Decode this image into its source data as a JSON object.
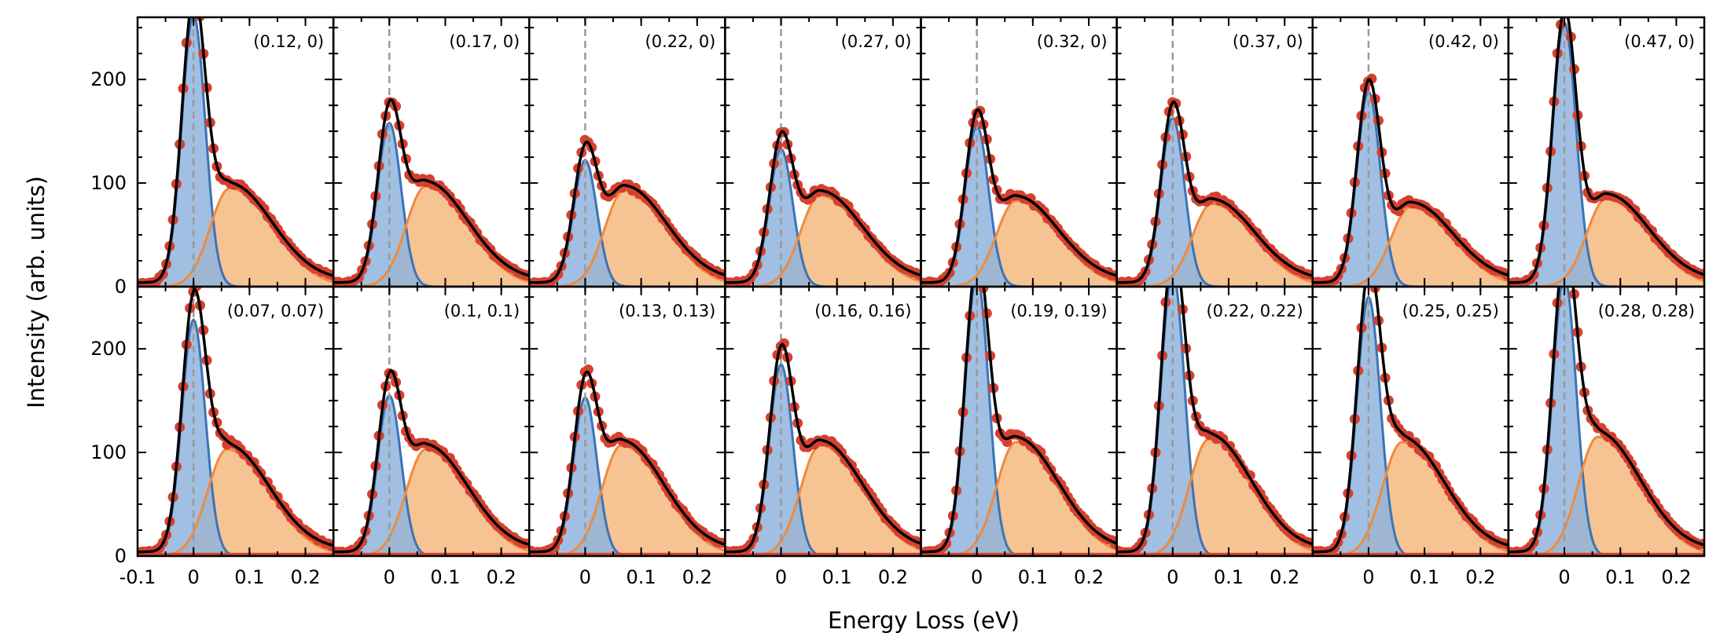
{
  "figure": {
    "ylabel": "Intensity (arb. units)",
    "xlabel": "Energy Loss (eV)"
  },
  "colors": {
    "data_points": "#d6402e",
    "elastic_fill": "#8fb4dd",
    "elastic_line": "#3b74b6",
    "inelastic_fill": "#f6c08c",
    "inelastic_line": "#f08a3c",
    "fit_line": "#000000",
    "reference_dash": "#9a9a9a"
  },
  "chart_data": {
    "type": "line",
    "layout": "grid 2x8, shared axes",
    "xlim": [
      -0.1,
      0.25
    ],
    "ylim": [
      0,
      260
    ],
    "xticks": [
      -0.1,
      0,
      0.1,
      0.2
    ],
    "xtick_labels": [
      "-0.1",
      "0",
      "0.1",
      "0.2"
    ],
    "yticks": [
      0,
      100,
      200
    ],
    "ytick_labels": [
      "0",
      "100",
      "200"
    ],
    "components": [
      "data",
      "elastic peak",
      "inelastic peak",
      "total fit"
    ],
    "panels": [
      {
        "label": "(0.12, 0)",
        "elastic_amp": 262,
        "elastic_center": 0.0,
        "inelastic_amp": 95,
        "inelastic_center": 0.065
      },
      {
        "label": "(0.17, 0)",
        "elastic_amp": 158,
        "elastic_center": 0.0,
        "inelastic_amp": 97,
        "inelastic_center": 0.065
      },
      {
        "label": "(0.22, 0)",
        "elastic_amp": 122,
        "elastic_center": 0.0,
        "inelastic_amp": 93,
        "inelastic_center": 0.07
      },
      {
        "label": "(0.27, 0)",
        "elastic_amp": 133,
        "elastic_center": 0.0,
        "inelastic_amp": 88,
        "inelastic_center": 0.07
      },
      {
        "label": "(0.32, 0)",
        "elastic_amp": 155,
        "elastic_center": 0.0,
        "inelastic_amp": 83,
        "inelastic_center": 0.07
      },
      {
        "label": "(0.37, 0)",
        "elastic_amp": 163,
        "elastic_center": 0.0,
        "inelastic_amp": 80,
        "inelastic_center": 0.07
      },
      {
        "label": "(0.42, 0)",
        "elastic_amp": 188,
        "elastic_center": 0.0,
        "inelastic_amp": 77,
        "inelastic_center": 0.075
      },
      {
        "label": "(0.47, 0)",
        "elastic_amp": 255,
        "elastic_center": 0.0,
        "inelastic_amp": 85,
        "inelastic_center": 0.075
      },
      {
        "label": "(0.07, 0.07)",
        "elastic_amp": 228,
        "elastic_center": 0.0,
        "inelastic_amp": 103,
        "inelastic_center": 0.06
      },
      {
        "label": "(0.1, 0.1)",
        "elastic_amp": 155,
        "elastic_center": 0.0,
        "inelastic_amp": 103,
        "inelastic_center": 0.065
      },
      {
        "label": "(0.13, 0.13)",
        "elastic_amp": 153,
        "elastic_center": 0.0,
        "inelastic_amp": 107,
        "inelastic_center": 0.065
      },
      {
        "label": "(0.16, 0.16)",
        "elastic_amp": 185,
        "elastic_center": 0.0,
        "inelastic_amp": 107,
        "inelastic_center": 0.07
      },
      {
        "label": "(0.19, 0.19)",
        "elastic_amp": 270,
        "elastic_center": 0.0,
        "inelastic_amp": 110,
        "inelastic_center": 0.07
      },
      {
        "label": "(0.22, 0.22)",
        "elastic_amp": 275,
        "elastic_center": 0.0,
        "inelastic_amp": 113,
        "inelastic_center": 0.065
      },
      {
        "label": "(0.25, 0.25)",
        "elastic_amp": 250,
        "elastic_center": 0.0,
        "inelastic_amp": 110,
        "inelastic_center": 0.06
      },
      {
        "label": "(0.28, 0.28)",
        "elastic_amp": 270,
        "elastic_center": 0.0,
        "inelastic_amp": 115,
        "inelastic_center": 0.06
      }
    ]
  }
}
